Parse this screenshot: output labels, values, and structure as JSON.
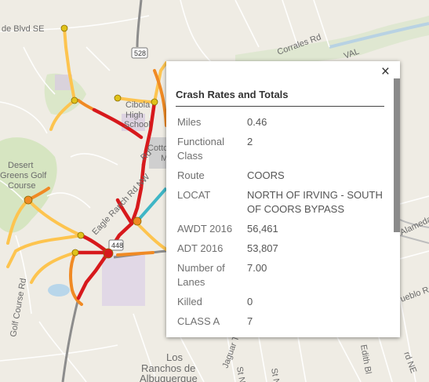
{
  "map_labels": {
    "street_top_left": "de Blvd SE",
    "route_shield": "528",
    "corrales_rd": "Corrales Rd",
    "val": "VAL",
    "cibola": "Cibola",
    "high": "High",
    "school": "School",
    "cotton": "Cotto",
    "cotton_m": "M",
    "desert": "Desert",
    "greens_golf": "Greens Golf",
    "course": "Course",
    "eagle_ranch": "Eagle Ranch Rd NW",
    "rd_label": "Rd",
    "golf_course_rd": "Golf Course Rd",
    "hwy_shield": "448",
    "alameda": "Alameda",
    "pueblo": "ueblo Rc",
    "los": "Los",
    "ranchos_de": "Ranchos de",
    "albuquerque": "Albuquerque",
    "st_nw_1": "St NW",
    "st_nw_2": "St NW",
    "edith": "Edith Bl",
    "rd_ne": "rd NE",
    "jaguar": "Jaguar Tr NW"
  },
  "popup": {
    "close_label": "×",
    "title": "Crash Rates and Totals",
    "rows": [
      {
        "key": "Miles",
        "value": "0.46"
      },
      {
        "key": "Functional Class",
        "value": "2"
      },
      {
        "key": "Route",
        "value": "COORS"
      },
      {
        "key": "LOCAT",
        "value": "NORTH OF IRVING - SOUTH OF COORS BYPASS"
      },
      {
        "key": "AWDT 2016",
        "value": "56,461"
      },
      {
        "key": "ADT 2016",
        "value": "53,807"
      },
      {
        "key": "Number of Lanes",
        "value": "7.00"
      },
      {
        "key": "Killed",
        "value": "0"
      },
      {
        "key": "CLASS A",
        "value": "7"
      }
    ]
  },
  "colors": {
    "road_red": "#d7191c",
    "road_orange": "#f08a24",
    "road_yellow": "#fdc44f",
    "selected_cyan": "#3fb6c6",
    "point_yellow": "#e0c21a"
  }
}
